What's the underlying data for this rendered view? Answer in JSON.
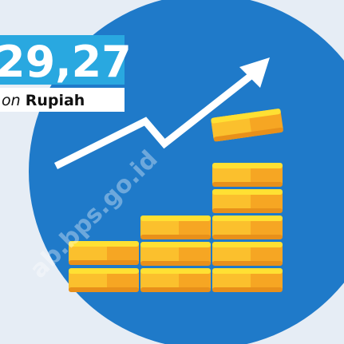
{
  "label": {
    "value": "29,27",
    "unit_prefix": "on",
    "unit": "Rupiah"
  },
  "watermark": "ab.bps.go.id"
}
